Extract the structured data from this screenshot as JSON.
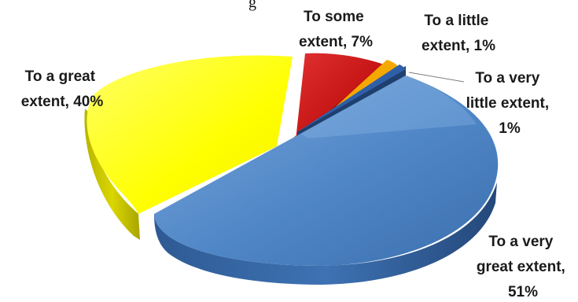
{
  "chart_data": {
    "type": "pie",
    "style": "3d-exploded",
    "slices": [
      {
        "category": "To a very great extent",
        "value": 51,
        "label_lines": [
          "To a very",
          "great extent,",
          "51%"
        ],
        "color": "#4F86C6"
      },
      {
        "category": "To a great extent",
        "value": 40,
        "label_lines": [
          "To a great",
          "extent, 40%"
        ],
        "color": "#FFFF00"
      },
      {
        "category": "To some extent",
        "value": 7,
        "label_lines": [
          "To some",
          "extent, 7%"
        ],
        "color": "#C00000"
      },
      {
        "category": "To a little extent",
        "value": 1,
        "label_lines": [
          "To a little",
          "extent, 1%"
        ],
        "color": "#F5A800"
      },
      {
        "category": "To a very little extent",
        "value": 1,
        "label_lines": [
          "To a very",
          "little extent,",
          "1%"
        ],
        "color": "#2F5FA8"
      }
    ],
    "cropped_top_text": "g"
  }
}
